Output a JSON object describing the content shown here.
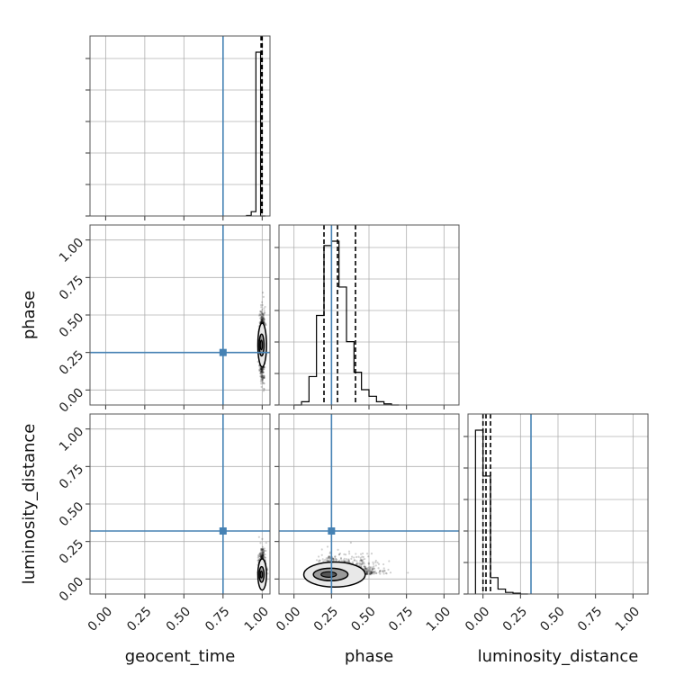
{
  "chart_data": {
    "type": "corner",
    "parameters": [
      "geocent_time",
      "phase",
      "luminosity_distance"
    ],
    "axis_labels": {
      "geocent_time": "geocent_time",
      "phase": "phase",
      "luminosity_distance": "luminosity_distance"
    },
    "tick_values": [
      0.0,
      0.25,
      0.5,
      0.75,
      1.0
    ],
    "tick_labels": [
      "0.00",
      "0.25",
      "0.50",
      "0.75",
      "1.00"
    ],
    "ranges": {
      "geocent_time": [
        -0.1,
        1.05
      ],
      "phase": [
        -0.1,
        1.1
      ],
      "luminosity_distance": [
        -0.1,
        1.1
      ]
    },
    "truths": {
      "geocent_time": 0.75,
      "phase": 0.25,
      "luminosity_distance": 0.32
    },
    "truth_color": "#4682b4",
    "grid": true,
    "histograms": {
      "geocent_time": {
        "bin_edges": [
          0.9,
          0.93,
          0.96,
          0.99,
          1.02
        ],
        "counts": [
          0.3,
          2.5,
          95,
          0
        ],
        "quantiles": [
          0.993,
          0.997,
          1.0
        ]
      },
      "phase": {
        "bin_edges": [
          0.0,
          0.05,
          0.1,
          0.15,
          0.2,
          0.25,
          0.3,
          0.35,
          0.4,
          0.45,
          0.5,
          0.55,
          0.6,
          0.65,
          0.7
        ],
        "counts": [
          0,
          1.5,
          13,
          41,
          73,
          75,
          54,
          29,
          15,
          7,
          4,
          1.5,
          0.5,
          0
        ],
        "quantiles": [
          0.2,
          0.29,
          0.41
        ]
      },
      "luminosity_distance": {
        "bin_edges": [
          -0.05,
          0.0,
          0.05,
          0.1,
          0.15,
          0.2,
          0.25,
          0.3
        ],
        "counts": [
          100,
          72,
          10,
          3,
          1,
          0.5,
          0
        ],
        "quantiles": [
          0.0,
          0.02,
          0.05
        ]
      }
    },
    "joint_2d": [
      {
        "x": "geocent_time",
        "y": "phase",
        "x_center": 1.0,
        "y_center": 0.3,
        "x_spread": 0.008,
        "y_spread": 0.07
      },
      {
        "x": "geocent_time",
        "y": "luminosity_distance",
        "x_center": 1.0,
        "y_center": 0.03,
        "x_spread": 0.01,
        "y_spread": 0.05
      },
      {
        "x": "phase",
        "y": "luminosity_distance",
        "x_center": 0.27,
        "y_center": 0.03,
        "x_spread": 0.08,
        "y_spread": 0.04
      }
    ]
  }
}
